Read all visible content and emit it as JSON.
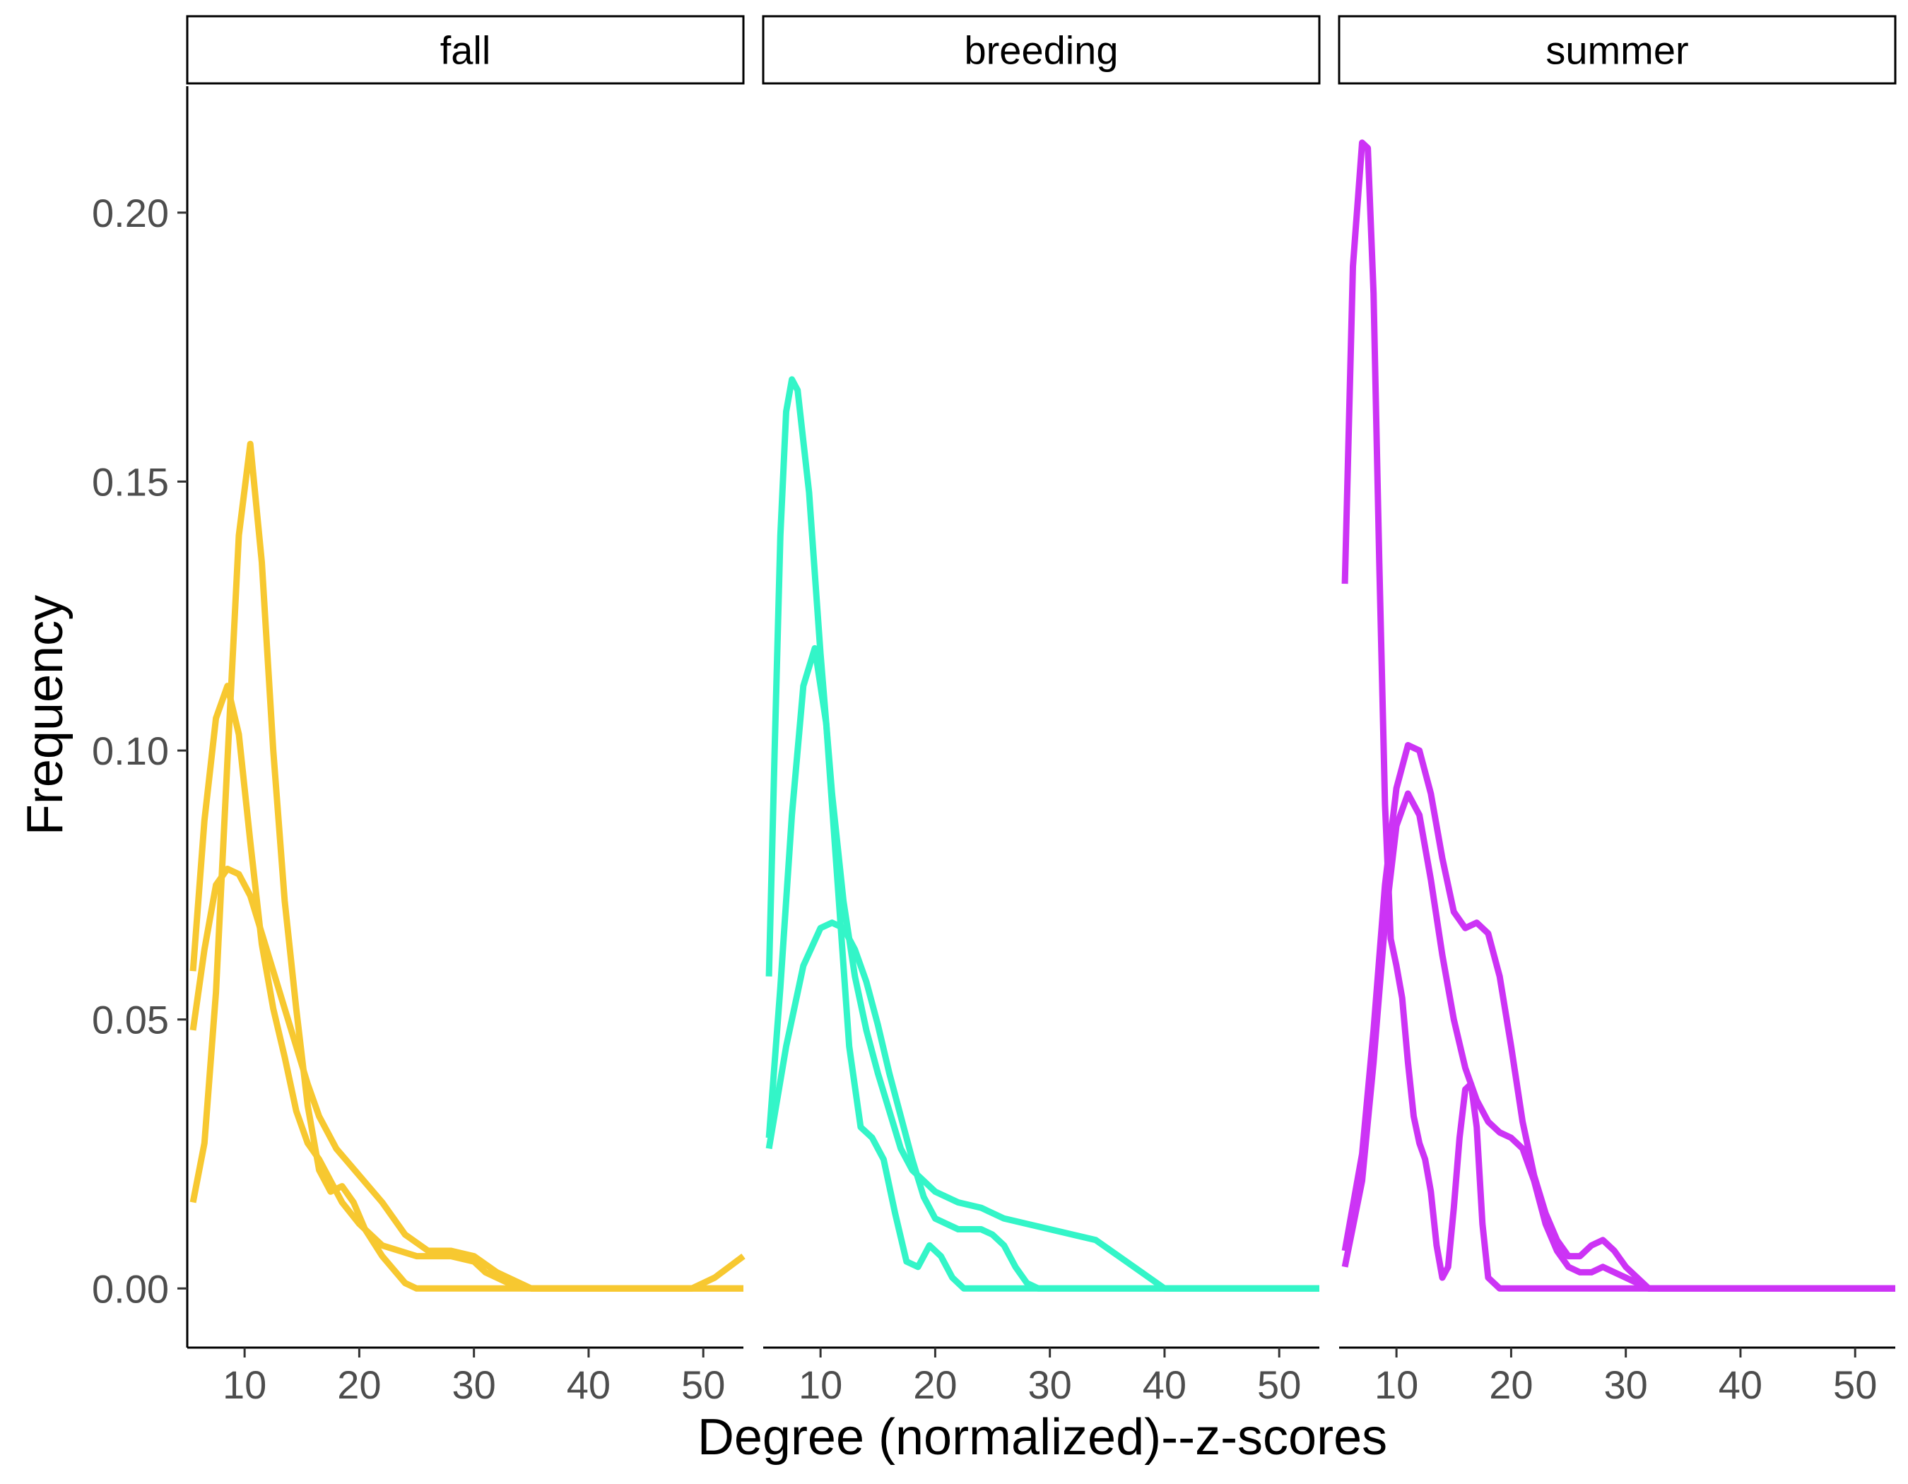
{
  "chart_data": {
    "type": "line",
    "xlabel": "Degree (normalized)--z-scores",
    "ylabel": "Frequency",
    "xlim": [
      5,
      53.5
    ],
    "ylim": [
      -0.011,
      0.2235
    ],
    "x_ticks": [
      10,
      20,
      30,
      40,
      50
    ],
    "y_ticks": [
      0.0,
      0.05,
      0.1,
      0.15,
      0.2
    ],
    "y_tick_labels": [
      "0.00",
      "0.05",
      "0.10",
      "0.15",
      "0.20"
    ],
    "grid": false,
    "legend": "none",
    "panels": [
      {
        "label": "fall",
        "color": "#F7C830",
        "series": [
          {
            "points": [
              [
                5.5,
                0.016
              ],
              [
                6.5,
                0.027
              ],
              [
                7.5,
                0.055
              ],
              [
                8.5,
                0.098
              ],
              [
                9.5,
                0.14
              ],
              [
                10.5,
                0.157
              ],
              [
                11.5,
                0.135
              ],
              [
                12.5,
                0.1
              ],
              [
                13.5,
                0.072
              ],
              [
                14.5,
                0.052
              ],
              [
                15.5,
                0.034
              ],
              [
                16.5,
                0.022
              ],
              [
                17.5,
                0.018
              ],
              [
                18.5,
                0.019
              ],
              [
                19.5,
                0.016
              ],
              [
                20.5,
                0.011
              ],
              [
                22,
                0.006
              ],
              [
                24,
                0.001
              ],
              [
                25,
                0.0
              ],
              [
                53.5,
                0.0
              ]
            ]
          },
          {
            "points": [
              [
                5.5,
                0.059
              ],
              [
                6.5,
                0.087
              ],
              [
                7.5,
                0.106
              ],
              [
                8.5,
                0.112
              ],
              [
                9.5,
                0.103
              ],
              [
                10.5,
                0.083
              ],
              [
                11.5,
                0.064
              ],
              [
                12.5,
                0.052
              ],
              [
                13.5,
                0.043
              ],
              [
                14.5,
                0.033
              ],
              [
                15.5,
                0.027
              ],
              [
                16.5,
                0.024
              ],
              [
                17.5,
                0.02
              ],
              [
                18.5,
                0.016
              ],
              [
                20,
                0.012
              ],
              [
                22,
                0.008
              ],
              [
                25,
                0.006
              ],
              [
                28,
                0.006
              ],
              [
                30,
                0.005
              ],
              [
                31,
                0.003
              ],
              [
                33,
                0.001
              ],
              [
                35,
                0.0
              ],
              [
                53.5,
                0.0
              ]
            ]
          },
          {
            "points": [
              [
                5.5,
                0.048
              ],
              [
                6.5,
                0.063
              ],
              [
                7.5,
                0.075
              ],
              [
                8.5,
                0.078
              ],
              [
                9.5,
                0.077
              ],
              [
                10.5,
                0.073
              ],
              [
                11.5,
                0.066
              ],
              [
                12.5,
                0.059
              ],
              [
                13.5,
                0.052
              ],
              [
                14.5,
                0.045
              ],
              [
                15.5,
                0.038
              ],
              [
                16.5,
                0.032
              ],
              [
                18,
                0.026
              ],
              [
                20,
                0.021
              ],
              [
                22,
                0.016
              ],
              [
                24,
                0.01
              ],
              [
                26,
                0.007
              ],
              [
                28,
                0.007
              ],
              [
                30,
                0.006
              ],
              [
                32,
                0.003
              ],
              [
                35,
                0.0
              ],
              [
                47,
                0.0
              ],
              [
                49,
                0.0
              ],
              [
                51,
                0.002
              ],
              [
                53.5,
                0.006
              ]
            ]
          }
        ]
      },
      {
        "label": "breeding",
        "color": "#33F5C8",
        "series": [
          {
            "points": [
              [
                5.5,
                0.058
              ],
              [
                6,
                0.1
              ],
              [
                6.5,
                0.14
              ],
              [
                7,
                0.163
              ],
              [
                7.5,
                0.169
              ],
              [
                8,
                0.167
              ],
              [
                9,
                0.148
              ],
              [
                10,
                0.118
              ],
              [
                11,
                0.092
              ],
              [
                12,
                0.072
              ],
              [
                13,
                0.058
              ],
              [
                14,
                0.048
              ],
              [
                15,
                0.04
              ],
              [
                16,
                0.033
              ],
              [
                17,
                0.026
              ],
              [
                18,
                0.022
              ],
              [
                19,
                0.02
              ],
              [
                20,
                0.018
              ],
              [
                22,
                0.016
              ],
              [
                24,
                0.015
              ],
              [
                26,
                0.013
              ],
              [
                28,
                0.012
              ],
              [
                30,
                0.011
              ],
              [
                32,
                0.01
              ],
              [
                34,
                0.009
              ],
              [
                36,
                0.006
              ],
              [
                38,
                0.003
              ],
              [
                40,
                0.0
              ],
              [
                53.5,
                0.0
              ]
            ]
          },
          {
            "points": [
              [
                5.5,
                0.028
              ],
              [
                6.5,
                0.056
              ],
              [
                7.5,
                0.088
              ],
              [
                8.5,
                0.112
              ],
              [
                9.5,
                0.119
              ],
              [
                10.5,
                0.105
              ],
              [
                11.5,
                0.075
              ],
              [
                12.5,
                0.045
              ],
              [
                13.5,
                0.03
              ],
              [
                14.5,
                0.028
              ],
              [
                15.5,
                0.024
              ],
              [
                16.5,
                0.014
              ],
              [
                17.5,
                0.005
              ],
              [
                18.5,
                0.004
              ],
              [
                19.5,
                0.008
              ],
              [
                20.5,
                0.006
              ],
              [
                21.5,
                0.002
              ],
              [
                22.5,
                0.0
              ],
              [
                53.5,
                0.0
              ]
            ]
          },
          {
            "points": [
              [
                5.5,
                0.026
              ],
              [
                7,
                0.045
              ],
              [
                8.5,
                0.06
              ],
              [
                10,
                0.067
              ],
              [
                11,
                0.068
              ],
              [
                12,
                0.067
              ],
              [
                13,
                0.063
              ],
              [
                14,
                0.057
              ],
              [
                15,
                0.049
              ],
              [
                16,
                0.04
              ],
              [
                17,
                0.032
              ],
              [
                18,
                0.024
              ],
              [
                19,
                0.017
              ],
              [
                20,
                0.013
              ],
              [
                22,
                0.011
              ],
              [
                24,
                0.011
              ],
              [
                25,
                0.01
              ],
              [
                26,
                0.008
              ],
              [
                27,
                0.004
              ],
              [
                28,
                0.001
              ],
              [
                29,
                0.0
              ],
              [
                53.5,
                0.0
              ]
            ]
          }
        ]
      },
      {
        "label": "summer",
        "color": "#CC33F5",
        "series": [
          {
            "points": [
              [
                5.5,
                0.131
              ],
              [
                6.2,
                0.19
              ],
              [
                7,
                0.213
              ],
              [
                7.5,
                0.212
              ],
              [
                8,
                0.185
              ],
              [
                8.5,
                0.135
              ],
              [
                9,
                0.09
              ],
              [
                9.5,
                0.065
              ],
              [
                10,
                0.06
              ],
              [
                10.5,
                0.054
              ],
              [
                11,
                0.042
              ],
              [
                11.5,
                0.032
              ],
              [
                12,
                0.027
              ],
              [
                12.5,
                0.024
              ],
              [
                13,
                0.018
              ],
              [
                13.5,
                0.008
              ],
              [
                14,
                0.002
              ],
              [
                14.5,
                0.004
              ],
              [
                15,
                0.015
              ],
              [
                15.5,
                0.028
              ],
              [
                16,
                0.037
              ],
              [
                16.5,
                0.038
              ],
              [
                17,
                0.03
              ],
              [
                17.5,
                0.012
              ],
              [
                18,
                0.002
              ],
              [
                19,
                0.0
              ],
              [
                53.5,
                0.0
              ]
            ]
          },
          {
            "points": [
              [
                5.5,
                0.007
              ],
              [
                7,
                0.025
              ],
              [
                8,
                0.048
              ],
              [
                9,
                0.075
              ],
              [
                10,
                0.093
              ],
              [
                11,
                0.101
              ],
              [
                12,
                0.1
              ],
              [
                13,
                0.092
              ],
              [
                14,
                0.08
              ],
              [
                15,
                0.07
              ],
              [
                16,
                0.067
              ],
              [
                17,
                0.068
              ],
              [
                18,
                0.066
              ],
              [
                19,
                0.058
              ],
              [
                20,
                0.045
              ],
              [
                21,
                0.031
              ],
              [
                22,
                0.021
              ],
              [
                23,
                0.014
              ],
              [
                24,
                0.009
              ],
              [
                25,
                0.006
              ],
              [
                26,
                0.006
              ],
              [
                27,
                0.008
              ],
              [
                28,
                0.009
              ],
              [
                29,
                0.007
              ],
              [
                30,
                0.004
              ],
              [
                31,
                0.002
              ],
              [
                32,
                0.0
              ],
              [
                53.5,
                0.0
              ]
            ]
          },
          {
            "points": [
              [
                5.5,
                0.004
              ],
              [
                7,
                0.02
              ],
              [
                8,
                0.042
              ],
              [
                9,
                0.068
              ],
              [
                10,
                0.086
              ],
              [
                11,
                0.092
              ],
              [
                12,
                0.088
              ],
              [
                13,
                0.076
              ],
              [
                14,
                0.062
              ],
              [
                15,
                0.05
              ],
              [
                16,
                0.041
              ],
              [
                17,
                0.035
              ],
              [
                18,
                0.031
              ],
              [
                19,
                0.029
              ],
              [
                20,
                0.028
              ],
              [
                21,
                0.026
              ],
              [
                22,
                0.02
              ],
              [
                23,
                0.012
              ],
              [
                24,
                0.007
              ],
              [
                25,
                0.004
              ],
              [
                26,
                0.003
              ],
              [
                27,
                0.003
              ],
              [
                28,
                0.004
              ],
              [
                29,
                0.003
              ],
              [
                30,
                0.002
              ],
              [
                31,
                0.001
              ],
              [
                32,
                0.0
              ],
              [
                53.5,
                0.0
              ]
            ]
          }
        ]
      }
    ]
  }
}
